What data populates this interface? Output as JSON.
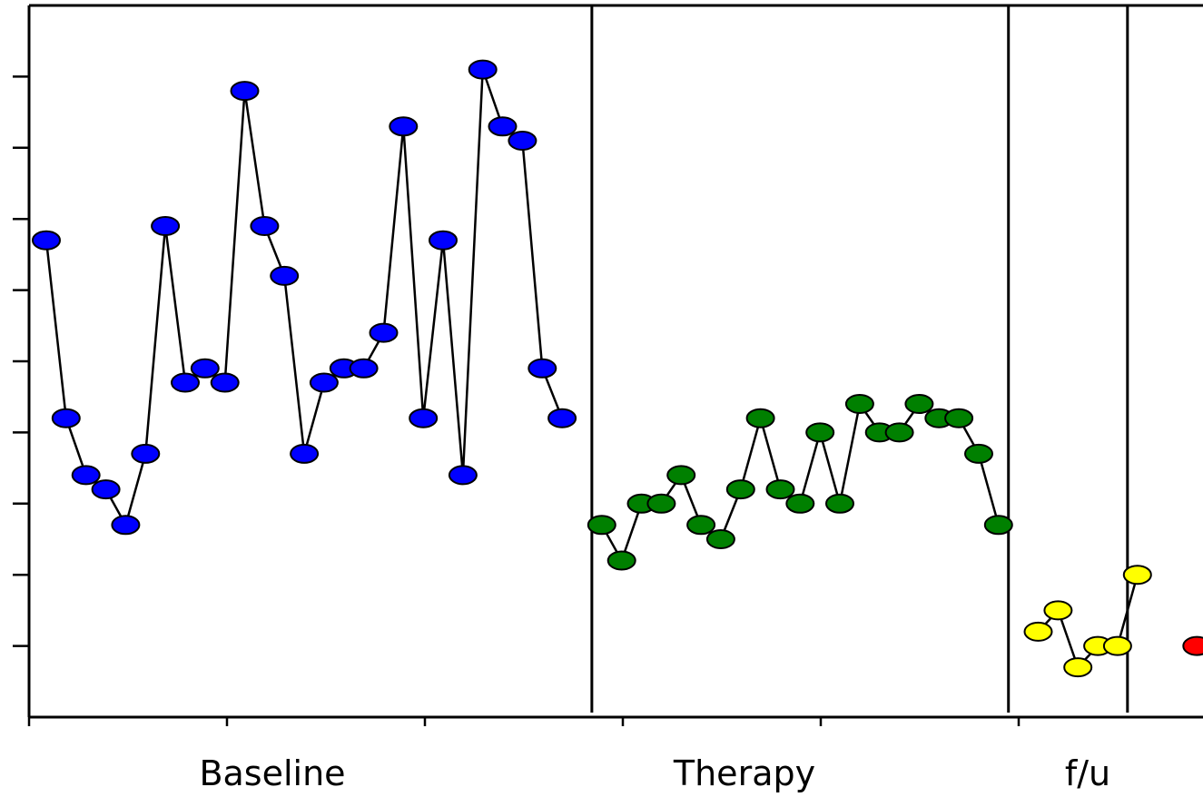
{
  "chart_data": {
    "type": "line",
    "title": "",
    "xlabel": "",
    "ylabel": "",
    "grid": false,
    "legend": "none",
    "ylim": [
      0,
      10
    ],
    "y_tick_count": 10,
    "phases": [
      {
        "label": "Baseline",
        "color": "#0000ff",
        "x_start": 1,
        "x_end": 28
      },
      {
        "label": "Therapy",
        "color": "#008000",
        "x_start": 29,
        "x_end": 49
      },
      {
        "label": "f/u",
        "color": "#ffff00",
        "x_start": 50,
        "x_end": 55
      },
      {
        "label": "",
        "color": "#ff0000",
        "x_start": 56,
        "x_end": 56
      }
    ],
    "series": [
      {
        "color": "#0000ff",
        "x": [
          1,
          2,
          3,
          4,
          5,
          6,
          7,
          8,
          9,
          10,
          11,
          12,
          13,
          14,
          15,
          16,
          17,
          18,
          19,
          20,
          21,
          22,
          23,
          24,
          25,
          26,
          27,
          28
        ],
        "values": [
          6.7,
          4.2,
          3.4,
          3.2,
          2.7,
          3.7,
          6.9,
          4.7,
          4.9,
          4.7,
          8.8,
          6.9,
          6.2,
          3.7,
          4.7,
          4.9,
          4.9,
          5.4,
          8.3,
          4.2,
          6.7,
          3.4,
          9.1,
          8.3,
          8.1,
          4.9,
          4.2,
          null
        ]
      },
      {
        "color": "#008000",
        "x": [
          29,
          30,
          31,
          32,
          33,
          34,
          35,
          36,
          37,
          38,
          39,
          40,
          41,
          42,
          43,
          44,
          45,
          46,
          47,
          48,
          49
        ],
        "values": [
          2.7,
          2.2,
          3.0,
          3.0,
          3.4,
          2.7,
          2.5,
          3.2,
          4.2,
          3.2,
          3.0,
          4.0,
          3.0,
          4.4,
          4.0,
          4.0,
          4.4,
          4.2,
          4.2,
          3.7,
          2.7
        ]
      },
      {
        "color": "#ffff00",
        "x": [
          51,
          52,
          53,
          54,
          55,
          56
        ],
        "values": [
          1.2,
          1.5,
          0.7,
          1.0,
          1.0,
          2.0
        ]
      },
      {
        "color": "#ff0000",
        "x": [
          59
        ],
        "values": [
          1.0
        ]
      }
    ]
  }
}
